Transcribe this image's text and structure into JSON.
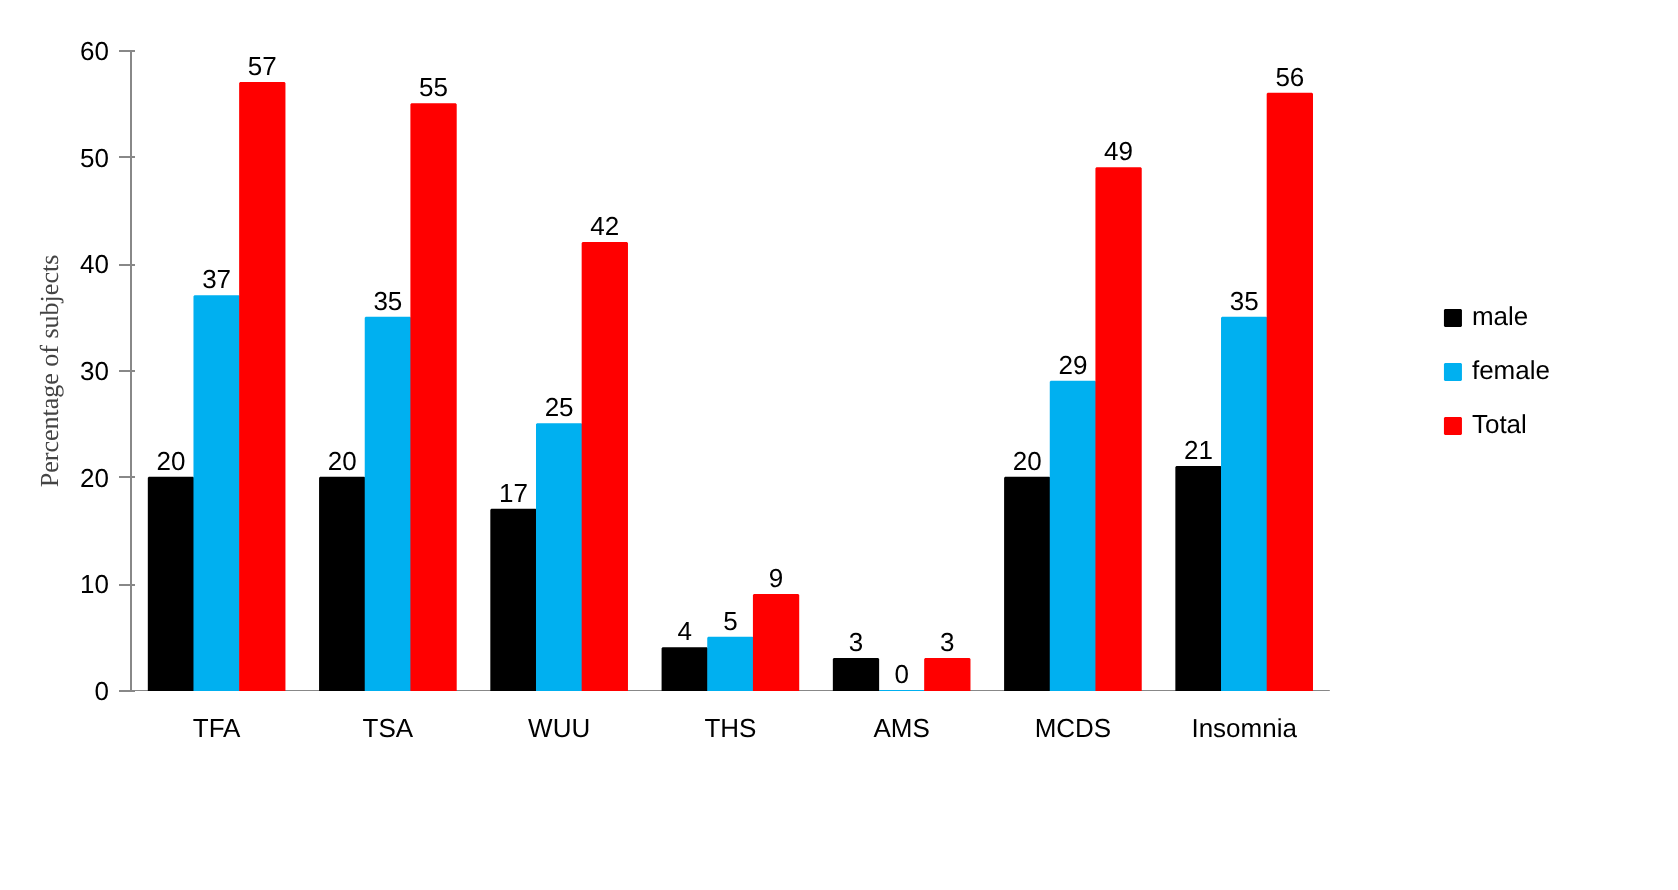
{
  "chart_data": {
    "type": "bar",
    "ylabel": "Percentage of subjects",
    "categories": [
      "TFA",
      "TSA",
      "WUU",
      "THS",
      "AMS",
      "MCDS",
      "Insomnia"
    ],
    "series": [
      {
        "name": "male",
        "color": "#000000",
        "values": [
          20,
          20,
          17,
          4,
          3,
          20,
          21
        ]
      },
      {
        "name": "female",
        "color": "#00b0f0",
        "values": [
          37,
          35,
          25,
          5,
          0,
          29,
          35
        ]
      },
      {
        "name": "Total",
        "color": "#ff0000",
        "values": [
          57,
          55,
          42,
          9,
          3,
          49,
          56
        ]
      }
    ],
    "ylim": [
      0,
      60
    ],
    "yticks": [
      0,
      10,
      20,
      30,
      40,
      50,
      60
    ],
    "grid": false,
    "legend": "right",
    "data_labels": true
  }
}
